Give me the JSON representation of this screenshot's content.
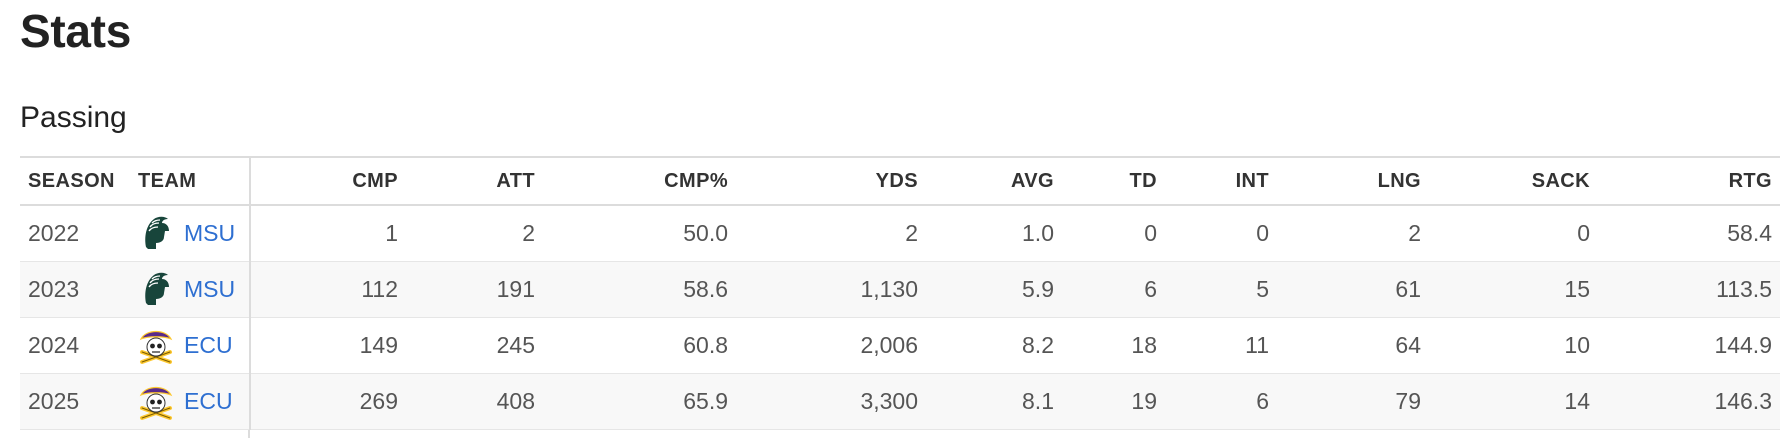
{
  "page": {
    "title": "Stats"
  },
  "section": {
    "title": "Passing"
  },
  "table": {
    "columns": [
      "SEASON",
      "TEAM",
      "CMP",
      "ATT",
      "CMP%",
      "YDS",
      "AVG",
      "TD",
      "INT",
      "LNG",
      "SACK",
      "RTG"
    ],
    "rows": [
      {
        "season": "2022",
        "team": "MSU",
        "logo": "spartan-helmet-icon",
        "cmp": "1",
        "att": "2",
        "cmp_pct": "50.0",
        "yds": "2",
        "avg": "1.0",
        "td": "0",
        "int": "0",
        "lng": "2",
        "sack": "0",
        "rtg": "58.4"
      },
      {
        "season": "2023",
        "team": "MSU",
        "logo": "spartan-helmet-icon",
        "cmp": "112",
        "att": "191",
        "cmp_pct": "58.6",
        "yds": "1,130",
        "avg": "5.9",
        "td": "6",
        "int": "5",
        "lng": "61",
        "sack": "15",
        "rtg": "113.5"
      },
      {
        "season": "2024",
        "team": "ECU",
        "logo": "pirate-skull-icon",
        "cmp": "149",
        "att": "245",
        "cmp_pct": "60.8",
        "yds": "2,006",
        "avg": "8.2",
        "td": "18",
        "int": "11",
        "lng": "64",
        "sack": "10",
        "rtg": "144.9"
      },
      {
        "season": "2025",
        "team": "ECU",
        "logo": "pirate-skull-icon",
        "cmp": "269",
        "att": "408",
        "cmp_pct": "65.9",
        "yds": "3,300",
        "avg": "8.1",
        "td": "19",
        "int": "6",
        "lng": "79",
        "sack": "14",
        "rtg": "146.3"
      }
    ]
  },
  "colors": {
    "link": "#2e6fd1",
    "msu_green": "#18453b",
    "ecu_purple": "#592a8a",
    "ecu_gold": "#fdc82f"
  }
}
